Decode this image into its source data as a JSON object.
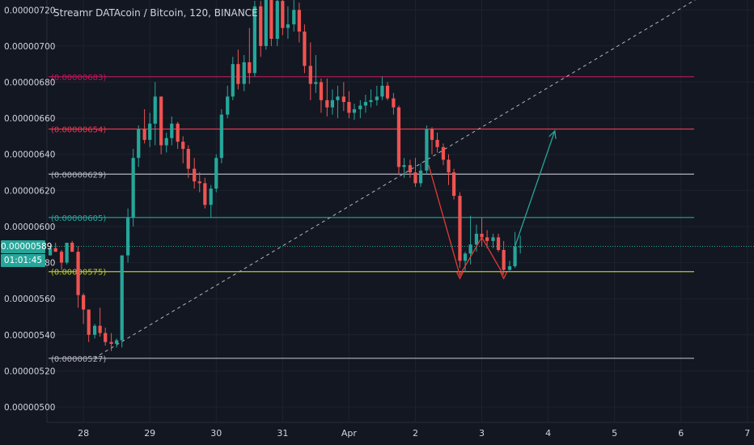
{
  "header": {
    "title": "Streamr DATAcoin / Bitcoin, 120, BINANCE"
  },
  "price_tag": {
    "label": "0.00000589",
    "color": "#26a69a"
  },
  "countdown_tag": {
    "label": "01:01:45",
    "color": "#26a69a"
  },
  "colors": {
    "background": "#131722",
    "up": "#26a69a",
    "down": "#ef5350",
    "axis_text": "#d1d4dc",
    "axis_line": "#2a2e39"
  },
  "chart_data": {
    "type": "candlestick",
    "title": "Streamr DATAcoin / Bitcoin, 120, BINANCE",
    "ylim": [
      4.915e-06,
      7.255e-06
    ],
    "y_ticks": [
      "0.00000500",
      "0.00000520",
      "0.00000540",
      "0.00000560",
      "0.00000580",
      "0.00000600",
      "0.00000620",
      "0.00000640",
      "0.00000660",
      "0.00000680",
      "0.00000700",
      "0.00000720"
    ],
    "x_ticks": [
      "28",
      "29",
      "30",
      "31",
      "Apr",
      "2",
      "3",
      "4",
      "5",
      "6",
      "7"
    ],
    "x_tick_positions": [
      0,
      1,
      2,
      3,
      4,
      5,
      6,
      7,
      8,
      9,
      10
    ],
    "x_range": [
      -0.55,
      10.1
    ],
    "candle_spacing": 0.0833,
    "candles": [
      [
        -0.5,
        5.84,
        5.89,
        5.84,
        5.88
      ],
      [
        -0.42,
        5.88,
        5.91,
        5.86,
        5.86
      ],
      [
        -0.33,
        5.86,
        5.87,
        5.76,
        5.8
      ],
      [
        -0.25,
        5.8,
        5.91,
        5.79,
        5.91
      ],
      [
        -0.17,
        5.91,
        5.92,
        5.86,
        5.86
      ],
      [
        -0.08,
        5.86,
        5.89,
        5.55,
        5.62
      ],
      [
        0.0,
        5.62,
        5.63,
        5.46,
        5.54
      ],
      [
        0.08,
        5.54,
        5.54,
        5.36,
        5.4
      ],
      [
        0.17,
        5.4,
        5.46,
        5.38,
        5.45
      ],
      [
        0.25,
        5.45,
        5.55,
        5.39,
        5.41
      ],
      [
        0.33,
        5.41,
        5.44,
        5.34,
        5.36
      ],
      [
        0.42,
        5.36,
        5.41,
        5.31,
        5.35
      ],
      [
        0.5,
        5.35,
        5.38,
        5.33,
        5.37
      ],
      [
        0.58,
        5.37,
        5.84,
        5.33,
        5.84
      ],
      [
        0.67,
        5.84,
        6.1,
        5.8,
        6.05
      ],
      [
        0.75,
        6.05,
        6.43,
        6.0,
        6.38
      ],
      [
        0.83,
        6.38,
        6.56,
        6.33,
        6.54
      ],
      [
        0.92,
        6.54,
        6.65,
        6.46,
        6.48
      ],
      [
        1.0,
        6.48,
        6.63,
        6.44,
        6.57
      ],
      [
        1.08,
        6.57,
        6.8,
        6.45,
        6.72
      ],
      [
        1.17,
        6.72,
        6.72,
        6.4,
        6.45
      ],
      [
        1.25,
        6.45,
        6.52,
        6.41,
        6.49
      ],
      [
        1.33,
        6.49,
        6.61,
        6.45,
        6.57
      ],
      [
        1.42,
        6.57,
        6.58,
        6.43,
        6.47
      ],
      [
        1.5,
        6.47,
        6.5,
        6.35,
        6.43
      ],
      [
        1.58,
        6.43,
        6.45,
        6.27,
        6.32
      ],
      [
        1.67,
        6.32,
        6.38,
        6.21,
        6.25
      ],
      [
        1.75,
        6.25,
        6.3,
        6.19,
        6.24
      ],
      [
        1.83,
        6.24,
        6.27,
        6.1,
        6.12
      ],
      [
        1.92,
        6.12,
        6.23,
        6.05,
        6.21
      ],
      [
        2.0,
        6.21,
        6.4,
        6.19,
        6.38
      ],
      [
        2.08,
        6.38,
        6.65,
        6.35,
        6.62
      ],
      [
        2.17,
        6.62,
        6.78,
        6.6,
        6.72
      ],
      [
        2.25,
        6.72,
        6.94,
        6.7,
        6.9
      ],
      [
        2.33,
        6.9,
        6.98,
        6.76,
        6.79
      ],
      [
        2.42,
        6.79,
        6.95,
        6.75,
        6.91
      ],
      [
        2.5,
        6.91,
        7.1,
        6.79,
        6.85
      ],
      [
        2.58,
        6.85,
        7.25,
        6.83,
        7.22
      ],
      [
        2.67,
        7.22,
        7.25,
        6.94,
        7.0
      ],
      [
        2.75,
        7.0,
        7.3,
        6.98,
        7.28
      ],
      [
        2.83,
        7.28,
        7.3,
        7.0,
        7.04
      ],
      [
        2.92,
        7.04,
        7.3,
        7.0,
        7.25
      ],
      [
        3.0,
        7.25,
        7.3,
        7.06,
        7.1
      ],
      [
        3.08,
        7.1,
        7.22,
        7.04,
        7.12
      ],
      [
        3.17,
        7.12,
        7.28,
        7.08,
        7.2
      ],
      [
        3.25,
        7.2,
        7.24,
        7.02,
        7.08
      ],
      [
        3.33,
        7.08,
        7.12,
        6.85,
        6.89
      ],
      [
        3.42,
        6.89,
        7.02,
        6.7,
        6.79
      ],
      [
        3.5,
        6.79,
        6.95,
        6.74,
        6.8
      ],
      [
        3.58,
        6.8,
        6.82,
        6.63,
        6.7
      ],
      [
        3.67,
        6.7,
        6.82,
        6.61,
        6.66
      ],
      [
        3.75,
        6.66,
        6.76,
        6.62,
        6.7
      ],
      [
        3.83,
        6.7,
        6.78,
        6.6,
        6.72
      ],
      [
        3.92,
        6.72,
        6.8,
        6.64,
        6.69
      ],
      [
        4.0,
        6.69,
        6.75,
        6.6,
        6.63
      ],
      [
        4.08,
        6.63,
        6.68,
        6.59,
        6.65
      ],
      [
        4.17,
        6.65,
        6.7,
        6.6,
        6.67
      ],
      [
        4.25,
        6.67,
        6.73,
        6.63,
        6.69
      ],
      [
        4.33,
        6.69,
        6.76,
        6.66,
        6.7
      ],
      [
        4.42,
        6.7,
        6.78,
        6.67,
        6.72
      ],
      [
        4.5,
        6.72,
        6.83,
        6.7,
        6.78
      ],
      [
        4.58,
        6.78,
        6.8,
        6.7,
        6.71
      ],
      [
        4.67,
        6.71,
        6.74,
        6.62,
        6.66
      ],
      [
        4.75,
        6.66,
        6.67,
        6.29,
        6.33
      ],
      [
        4.83,
        6.33,
        6.38,
        6.27,
        6.34
      ],
      [
        4.92,
        6.34,
        6.37,
        6.27,
        6.3
      ],
      [
        5.0,
        6.3,
        6.38,
        6.22,
        6.24
      ],
      [
        5.08,
        6.24,
        6.35,
        6.22,
        6.31
      ],
      [
        5.17,
        6.31,
        6.56,
        6.29,
        6.54
      ],
      [
        5.25,
        6.54,
        6.55,
        6.4,
        6.48
      ],
      [
        5.33,
        6.48,
        6.52,
        6.41,
        6.44
      ],
      [
        5.42,
        6.44,
        6.46,
        6.34,
        6.37
      ],
      [
        5.5,
        6.37,
        6.4,
        6.23,
        6.3
      ],
      [
        5.58,
        6.3,
        6.32,
        6.15,
        6.17
      ],
      [
        5.67,
        6.17,
        6.19,
        5.77,
        5.81
      ],
      [
        5.75,
        5.81,
        5.86,
        5.75,
        5.85
      ],
      [
        5.83,
        5.85,
        6.06,
        5.79,
        5.9
      ],
      [
        5.92,
        5.9,
        6.01,
        5.86,
        5.96
      ],
      [
        6.0,
        5.96,
        6.05,
        5.89,
        5.94
      ],
      [
        6.08,
        5.94,
        5.98,
        5.88,
        5.92
      ],
      [
        6.17,
        5.92,
        5.96,
        5.88,
        5.94
      ],
      [
        6.25,
        5.94,
        5.96,
        5.86,
        5.87
      ],
      [
        6.33,
        5.87,
        5.92,
        5.74,
        5.76
      ],
      [
        6.42,
        5.76,
        5.81,
        5.75,
        5.78
      ],
      [
        6.5,
        5.78,
        5.97,
        5.77,
        5.89
      ],
      [
        6.58,
        5.89,
        5.95,
        5.85,
        5.89
      ]
    ],
    "horizontal_levels": [
      {
        "label": "(0.00000683)",
        "value": 6.83e-06,
        "color": "#c2185b"
      },
      {
        "label": "(0.00000654)",
        "value": 6.54e-06,
        "color": "#e5394f"
      },
      {
        "label": "(0.00000629)",
        "value": 6.29e-06,
        "color": "#b2b5be"
      },
      {
        "label": "(0.00000605)",
        "value": 6.05e-06,
        "color": "#26a69a"
      },
      {
        "label": "(0.00000575)",
        "value": 5.75e-06,
        "color": "#b6c631"
      },
      {
        "label": "(0.00000527)",
        "value": 5.27e-06,
        "color": "#b2b5be"
      }
    ],
    "current_price": 5.89e-06,
    "trend_line": {
      "from": [
        0.16,
        5.27e-06
      ],
      "to": [
        10.1,
        7.45e-06
      ],
      "color": "#b2b5be",
      "style": "dashed"
    },
    "drawings": [
      {
        "name": "red-zigzag",
        "color": "#e53935",
        "points": [
          [
            5.2,
            6.34e-06
          ],
          [
            5.67,
            5.73e-06
          ],
          [
            6.0,
            5.94e-06
          ],
          [
            6.33,
            5.73e-06
          ]
        ]
      },
      {
        "name": "green-projection-arrow",
        "color": "#26a69a",
        "points": [
          [
            6.5,
            5.89e-06
          ],
          [
            7.1,
            6.53e-06
          ]
        ],
        "arrow": true
      }
    ]
  }
}
